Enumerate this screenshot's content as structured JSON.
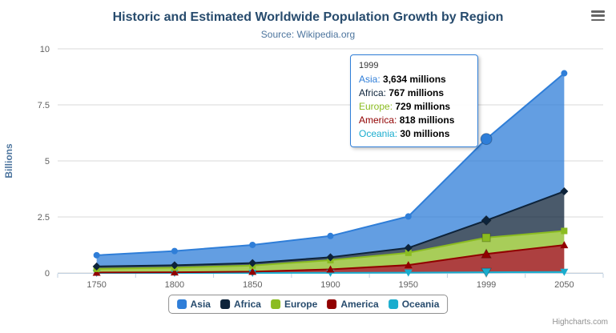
{
  "chart_data": {
    "type": "area",
    "stacking": "normal",
    "title": "Historic and Estimated Worldwide Population Growth by Region",
    "subtitle": "Source: Wikipedia.org",
    "ylabel": "Billions",
    "yticks": [
      "0",
      "2.5",
      "5",
      "7.5",
      "10"
    ],
    "ylim_billions": [
      0,
      10
    ],
    "grid": true,
    "legend_position": "bottom",
    "unit": "millions",
    "categories": [
      "1750",
      "1800",
      "1850",
      "1900",
      "1950",
      "1999",
      "2050"
    ],
    "series": [
      {
        "name": "Asia",
        "color": "#2f7ed8",
        "marker": "circle",
        "values": [
          502,
          635,
          809,
          947,
          1402,
          3634,
          5268
        ]
      },
      {
        "name": "Africa",
        "color": "#0d233a",
        "marker": "diamond",
        "values": [
          106,
          107,
          111,
          133,
          221,
          767,
          1766
        ]
      },
      {
        "name": "Europe",
        "color": "#8bbc21",
        "marker": "square",
        "values": [
          163,
          203,
          276,
          408,
          547,
          729,
          628
        ]
      },
      {
        "name": "America",
        "color": "#910000",
        "marker": "triangle",
        "values": [
          18,
          31,
          54,
          156,
          339,
          818,
          1201
        ]
      },
      {
        "name": "Oceania",
        "color": "#1aadce",
        "marker": "triangle-down",
        "values": [
          2,
          2,
          2,
          6,
          13,
          30,
          46
        ]
      }
    ]
  },
  "tooltip": {
    "header": "1999",
    "rows": [
      {
        "label": "Asia",
        "value": "3,634 millions"
      },
      {
        "label": "Africa",
        "value": "767 millions"
      },
      {
        "label": "Europe",
        "value": "729 millions"
      },
      {
        "label": "America",
        "value": "818 millions"
      },
      {
        "label": "Oceania",
        "value": "30 millions"
      }
    ]
  },
  "credits": "Highcharts.com"
}
